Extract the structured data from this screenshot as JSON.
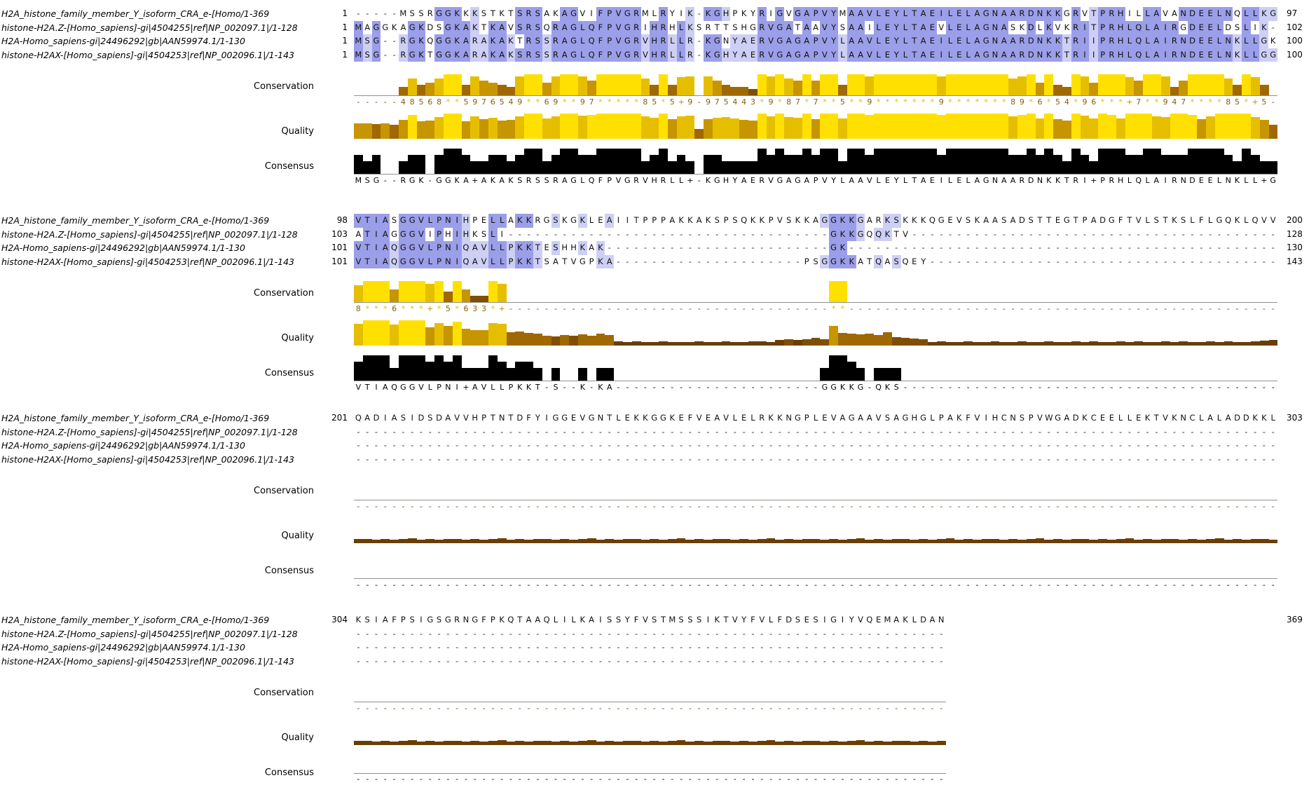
{
  "app": {
    "name": "multiple-sequence-alignment-viewer"
  },
  "track_labels": {
    "conservation": "Conservation",
    "quality": "Quality",
    "consensus": "Consensus"
  },
  "sequence_labels": [
    "H2A_histone_family_member_Y_isoform_CRA_e-[Homo/1-369",
    "histone-H2A.Z-[Homo_sapiens]-gi|4504255|ref|NP_002097.1|/1-128",
    "H2A-Homo_sapiens-gi|24496292|gb|AAN59974.1/1-130",
    "histone-H2AX-[Homo_sapiens]-gi|4504253|ref|NP_002096.1|/1-143"
  ],
  "colors": {
    "highlight_strong": "#9B9EE8",
    "highlight_weak": "#CDCFF4",
    "consensus_bar": "#000000",
    "baseline": "#909090",
    "ramp": [
      [
        95,
        "#FFE000"
      ],
      [
        80,
        "#E6BE00"
      ],
      [
        60,
        "#C79500"
      ],
      [
        40,
        "#A06800"
      ],
      [
        25,
        "#804E00"
      ],
      [
        1,
        "#6B3E00"
      ]
    ],
    "star_char": "#E0BC00",
    "plus_char": "#C09000",
    "digit_char": "#8A5E00",
    "cons_dash_char": "#6A4A10"
  },
  "blocks": [
    {
      "ncols": 103,
      "rows": [
        {
          "start": "1",
          "end": "97",
          "seq": [
            "-----MSSRGGKKKSTKTSRSAKAGVIFPVGRMLRYIK-KGHPKYRIGVGAPVYMAAVLEYLTAEILELAGNAARDNKKGRVTPRHILLAVANDEELNQLLKG"
          ]
        },
        {
          "start": "1",
          "end": "102",
          "seq": [
            "MAGGKAGKDSGKAKTKAVSRSQRAGLQFPVGRIHRHLKSRTTSHGRVGATAAVYSAAILEYLTAEVLELAGNASKDLKVKRITPRHLQLAIRGDEELDSLIK-"
          ]
        },
        {
          "start": "1",
          "end": "100",
          "seq": [
            "MSG--RGKQGGKARAKAKTRSSRAGLQFPVGRVHRLLR-KGNYAERVGAGAPVYLAAVLEYLTAEILELAGNAARDNKKTRIIPRHLQLAIRNDEELNKLLGK"
          ]
        },
        {
          "start": "1",
          "end": "100",
          "seq": [
            "MSG--RGKTGGKARAKAKSRSSRAGLQFPVGRVHRLLR-KGHYAERVGAGAPVYLAAVLEYLTAEILELAGNAARDNKKTRIIPRHLQLAIRNDEELNKLLGG"
          ]
        }
      ],
      "conservation": [
        "-----48568**5976549**69**97*****85*5+9-975443*9*87*7**5**9*******9*******89*6*54*96***+7**947****85*+5-"
      ],
      "quality": [
        60,
        62,
        58,
        60,
        55,
        75,
        95,
        70,
        72,
        85,
        100,
        100,
        70,
        88,
        78,
        82,
        72,
        76,
        88,
        100,
        100,
        80,
        88,
        100,
        100,
        92,
        95,
        100,
        100,
        100,
        100,
        100,
        88,
        82,
        100,
        78,
        90,
        92,
        40,
        78,
        82,
        86,
        80,
        76,
        72,
        100,
        90,
        100,
        86,
        82,
        100,
        78,
        100,
        100,
        80,
        100,
        100,
        95,
        100,
        100,
        100,
        100,
        100,
        100,
        100,
        95,
        100,
        100,
        100,
        100,
        100,
        100,
        100,
        90,
        95,
        100,
        80,
        100,
        78,
        72,
        100,
        92,
        80,
        100,
        95,
        80,
        100,
        100,
        100,
        90,
        85,
        100,
        100,
        95,
        78,
        88,
        100,
        100,
        100,
        100,
        85,
        75,
        55
      ],
      "consensus": [
        "MSG--RGK-GGKA+AKAKSRSSRAGLQFPVGRVHRLL+-KGHYAERVGAGAPVYLAAVLEYLTAEILELAGNAARDNKKTRI+PRHLQLAIRNDEELNKLL+G"
      ]
    },
    {
      "ncols": 103,
      "rows": [
        {
          "start": "98",
          "end": "200",
          "seq": [
            "VTIASGGVLPNIHPELLAKKRGSKGKLEAIITPPPAKKAKSPSQKKPVSKKAGGKKGARKSKKKQGEVSKAASADSTTEGTPADGFTVLSTKSLFLGQKLQVV"
          ]
        },
        {
          "start": "103",
          "end": "128",
          "seq": [
            "ATIAGGGVIPHIHKSLI",
            36,
            "GKKGQQKTV"
          ]
        },
        {
          "start": "101",
          "end": "130",
          "seq": [
            "VTIAQGGVLPNIQAVLLPKKTESHHKAK",
            25,
            "GK"
          ]
        },
        {
          "start": "101",
          "end": "143",
          "seq": [
            "VTIAQGGVLPNIQAVLLPKKTSATVGPKA",
            21,
            "PSGGKKATQASQEY"
          ]
        }
      ],
      "conservation": [
        "8***6***+*5*633*+",
        36,
        "**"
      ],
      "quality": [
        85,
        100,
        100,
        100,
        82,
        100,
        100,
        100,
        72,
        90,
        78,
        95,
        68,
        62,
        62,
        90,
        85,
        52,
        55,
        50,
        48,
        40,
        36,
        42,
        38,
        45,
        40,
        48,
        42,
        16,
        15,
        17,
        15,
        14,
        16,
        15,
        14,
        15,
        16,
        15,
        14,
        16,
        15,
        15,
        17,
        16,
        15,
        22,
        26,
        22,
        26,
        30,
        26,
        78,
        50,
        46,
        44,
        46,
        42,
        52,
        34,
        30,
        27,
        25,
        15,
        16,
        14,
        15,
        17,
        15,
        14,
        16,
        15,
        15,
        16,
        14,
        15,
        16,
        15,
        14,
        17,
        15,
        16,
        15,
        14,
        16,
        15,
        17,
        15,
        14,
        16,
        15,
        16,
        14,
        15,
        17,
        15,
        16,
        14,
        15,
        18,
        20,
        22
      ],
      "consensus": [
        "VTIAQGGVLPNI+AVLLPKKT-S--K-KA",
        23,
        "GGKKG-QKS"
      ]
    },
    {
      "ncols": 103,
      "rows": [
        {
          "start": "201",
          "end": "303",
          "seq": [
            "QADIASIDSDAVVHPTNTDFYIGGEVGNTLEKKGGKEFVEAVLELRKKNGPLEVAGAAVSAGHGLPAKFVIHCNSPVWGADKCEELLEKTVKNCLALADDKKL"
          ]
        },
        {
          "start": "",
          "end": "",
          "seq": [
            103
          ]
        },
        {
          "start": "",
          "end": "",
          "seq": [
            103
          ]
        },
        {
          "start": "",
          "end": "",
          "seq": [
            103
          ]
        }
      ],
      "conservation": [
        103
      ],
      "quality": {
        "tile": [
          16,
          18,
          15,
          17,
          14,
          16,
          19,
          15,
          17,
          15
        ]
      },
      "consensus": [
        103
      ]
    },
    {
      "ncols": 66,
      "compact_consensus": true,
      "rows": [
        {
          "start": "304",
          "end": "369",
          "seq": [
            "KSIAFPSIGSGRNGFPKQTAAQLILKAISSYFVSTMSSSIKTVYFVLFDSESIGIYVQEMAKLDAN"
          ]
        },
        {
          "start": "",
          "end": "",
          "seq": [
            66
          ]
        },
        {
          "start": "",
          "end": "",
          "seq": [
            66
          ]
        },
        {
          "start": "",
          "end": "",
          "seq": [
            66
          ]
        }
      ],
      "conservation": [
        66
      ],
      "quality": {
        "tile": [
          16,
          18,
          15,
          17,
          14,
          16,
          19,
          15,
          17,
          15
        ]
      },
      "consensus": [
        66
      ]
    }
  ]
}
